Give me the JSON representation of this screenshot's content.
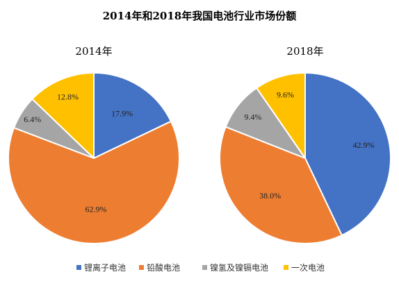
{
  "chart_data": {
    "type": "pie",
    "title": "2014年和2018年我国电池行业市场份额",
    "categories": [
      "锂离子电池",
      "铅酸电池",
      "镍氢及镍镉电池",
      "一次电池"
    ],
    "colors": [
      "#4472C4",
      "#ED7D31",
      "#A5A5A5",
      "#FFC000"
    ],
    "series": [
      {
        "name": "2014年",
        "values": [
          17.9,
          62.9,
          6.4,
          12.8
        ],
        "labels": [
          "17.9%",
          "62.9%",
          "6.4%",
          "12.8%"
        ]
      },
      {
        "name": "2018年",
        "values": [
          42.9,
          38.0,
          9.4,
          9.6
        ],
        "labels": [
          "42.9%",
          "38.0%",
          "9.4%",
          "9.6%"
        ]
      }
    ],
    "legend_position": "bottom"
  }
}
